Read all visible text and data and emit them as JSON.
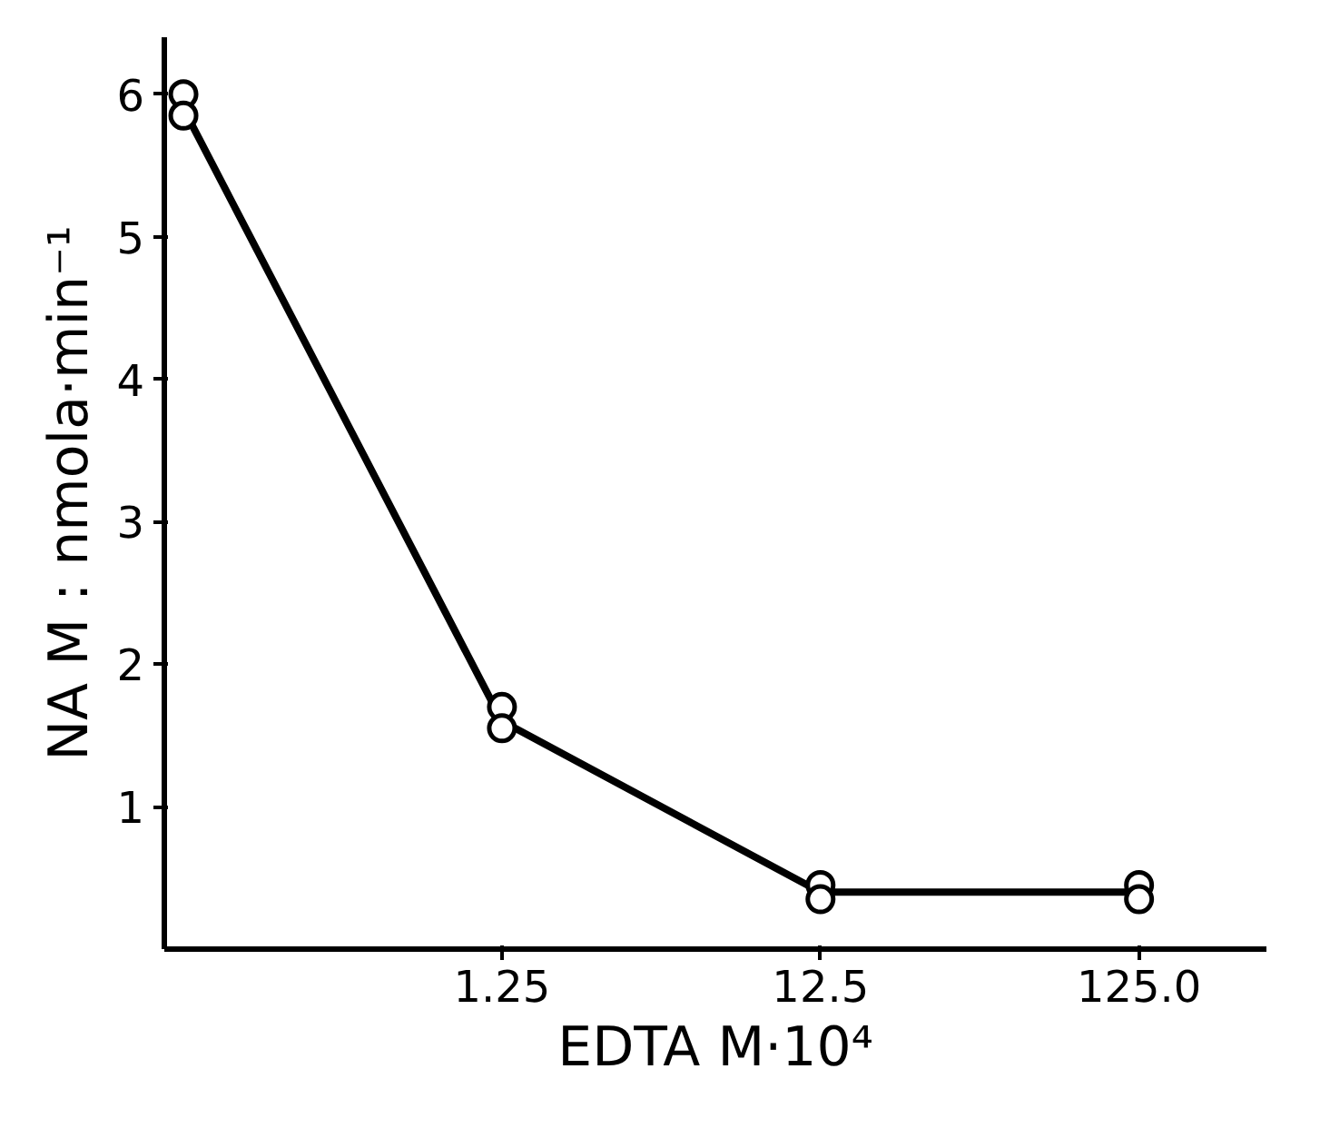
{
  "chart_data": {
    "type": "line",
    "xlabel": "EDTA M·10⁴",
    "ylabel": "NA M : nmola·min⁻¹",
    "categories": [
      null,
      "1.25",
      "12.5",
      "125.0"
    ],
    "series": [
      {
        "color": "#000000",
        "values": [
          5.9,
          1.6,
          0.4,
          0.4
        ]
      },
      {
        "type": "scatter",
        "color": "#000000",
        "values": [
          6.0,
          1.7,
          0.45,
          0.45
        ],
        "marker": "circle"
      },
      {
        "type": "scatter",
        "color": "#000000",
        "values": [
          5.85,
          1.55,
          0.35,
          0.35
        ],
        "marker": "circle"
      }
    ],
    "ylim": [
      0,
      6.4
    ],
    "yticks": [
      1,
      2,
      3,
      4,
      5,
      6
    ],
    "grid": false
  }
}
